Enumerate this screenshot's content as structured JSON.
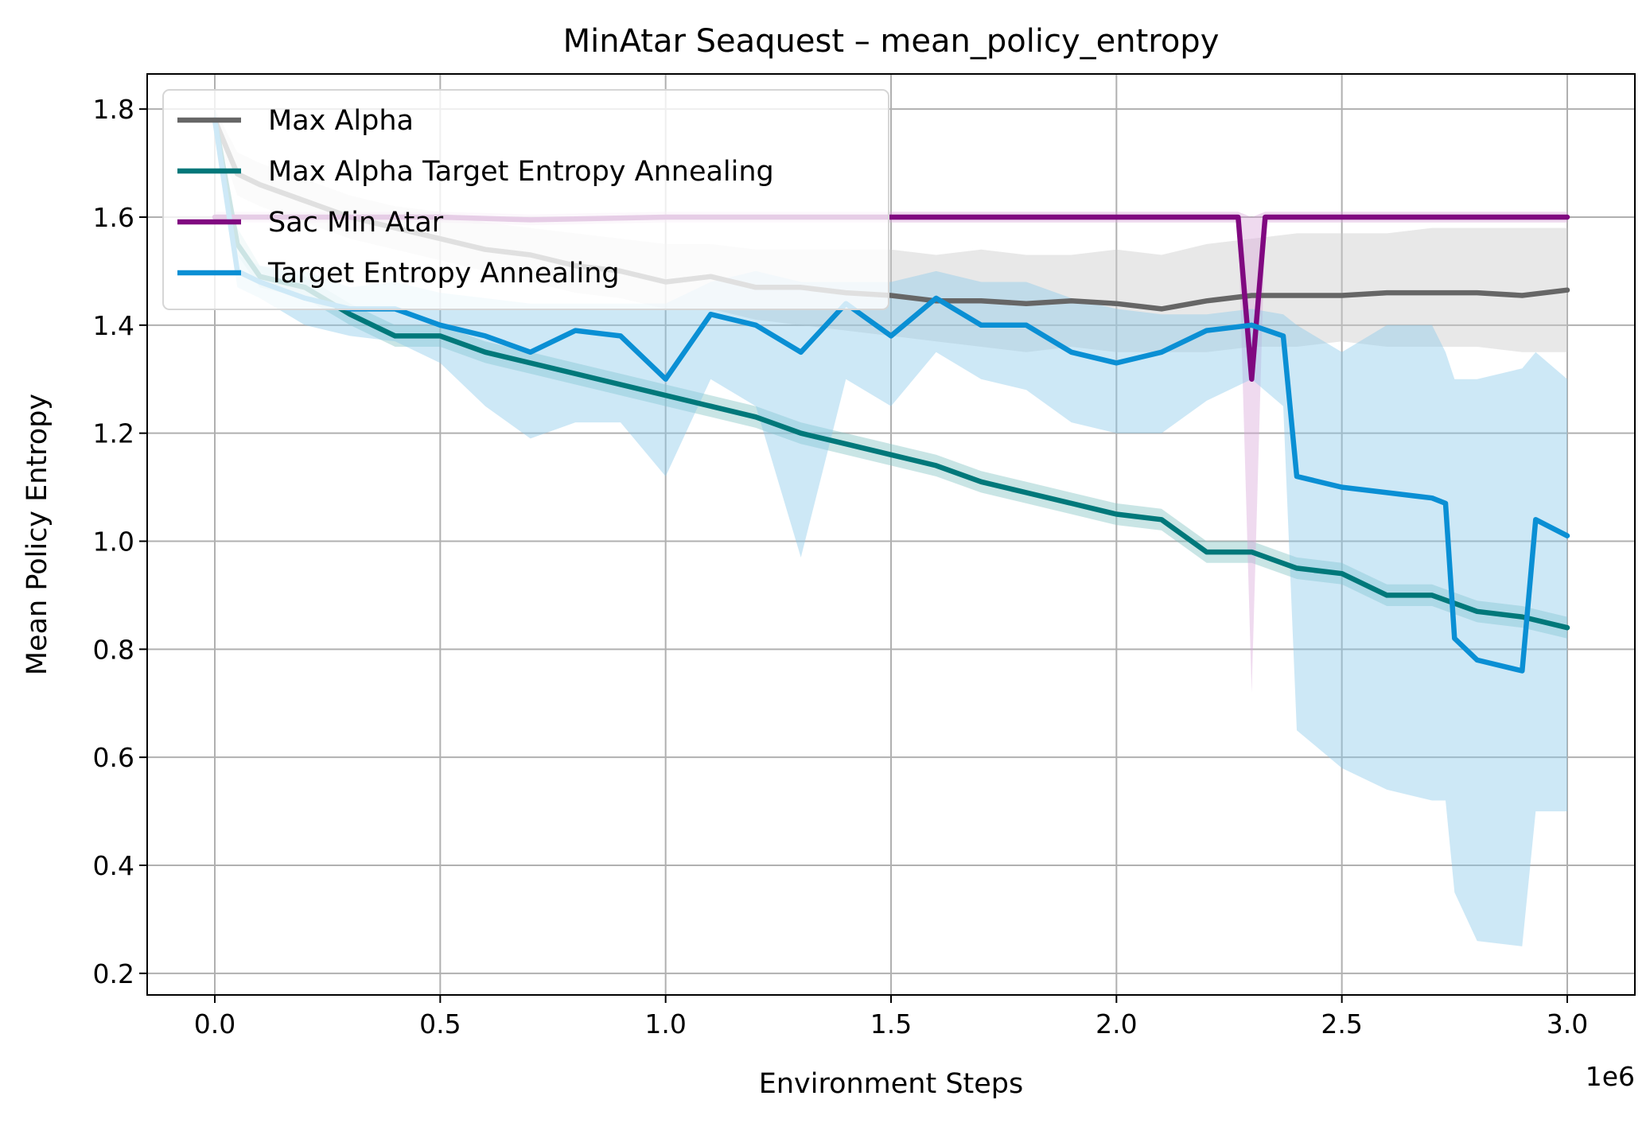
{
  "chart_data": {
    "type": "line",
    "title": "MinAtar Seaquest – mean_policy_entropy",
    "xlabel": "Environment Steps",
    "ylabel": "Mean Policy Entropy",
    "x_multiplier_label": "1e6",
    "xlim": [
      -0.15,
      3.15
    ],
    "ylim": [
      0.16,
      1.865
    ],
    "xticks": [
      {
        "value": 0.0,
        "label": "0.0"
      },
      {
        "value": 0.5,
        "label": "0.5"
      },
      {
        "value": 1.0,
        "label": "1.0"
      },
      {
        "value": 1.5,
        "label": "1.5"
      },
      {
        "value": 2.0,
        "label": "2.0"
      },
      {
        "value": 2.5,
        "label": "2.5"
      },
      {
        "value": 3.0,
        "label": "3.0"
      }
    ],
    "yticks": [
      {
        "value": 0.2,
        "label": "0.2"
      },
      {
        "value": 0.4,
        "label": "0.4"
      },
      {
        "value": 0.6,
        "label": "0.6"
      },
      {
        "value": 0.8,
        "label": "0.8"
      },
      {
        "value": 1.0,
        "label": "1.0"
      },
      {
        "value": 1.2,
        "label": "1.2"
      },
      {
        "value": 1.4,
        "label": "1.4"
      },
      {
        "value": 1.6,
        "label": "1.6"
      },
      {
        "value": 1.8,
        "label": "1.8"
      }
    ],
    "grid": true,
    "legend_position": "upper-left",
    "series": [
      {
        "name": "Max Alpha",
        "color": "#666666",
        "band_color": "#c8c8c8",
        "points": [
          [
            0.0,
            1.78,
            1.76,
            1.8
          ],
          [
            0.05,
            1.68,
            1.64,
            1.72
          ],
          [
            0.1,
            1.66,
            1.62,
            1.7
          ],
          [
            0.2,
            1.63,
            1.59,
            1.67
          ],
          [
            0.3,
            1.6,
            1.56,
            1.64
          ],
          [
            0.4,
            1.58,
            1.54,
            1.62
          ],
          [
            0.5,
            1.56,
            1.52,
            1.61
          ],
          [
            0.6,
            1.54,
            1.5,
            1.59
          ],
          [
            0.7,
            1.53,
            1.48,
            1.58
          ],
          [
            0.8,
            1.51,
            1.46,
            1.57
          ],
          [
            0.9,
            1.5,
            1.45,
            1.56
          ],
          [
            1.0,
            1.48,
            1.43,
            1.55
          ],
          [
            1.1,
            1.49,
            1.43,
            1.55
          ],
          [
            1.2,
            1.47,
            1.41,
            1.54
          ],
          [
            1.3,
            1.47,
            1.4,
            1.54
          ],
          [
            1.4,
            1.46,
            1.39,
            1.54
          ],
          [
            1.5,
            1.455,
            1.38,
            1.54
          ],
          [
            1.6,
            1.445,
            1.37,
            1.53
          ],
          [
            1.7,
            1.445,
            1.36,
            1.54
          ],
          [
            1.8,
            1.44,
            1.35,
            1.53
          ],
          [
            1.9,
            1.445,
            1.36,
            1.53
          ],
          [
            2.0,
            1.44,
            1.35,
            1.54
          ],
          [
            2.1,
            1.43,
            1.35,
            1.53
          ],
          [
            2.2,
            1.445,
            1.35,
            1.55
          ],
          [
            2.3,
            1.455,
            1.36,
            1.56
          ],
          [
            2.4,
            1.455,
            1.36,
            1.57
          ],
          [
            2.5,
            1.455,
            1.37,
            1.57
          ],
          [
            2.6,
            1.46,
            1.36,
            1.57
          ],
          [
            2.7,
            1.46,
            1.36,
            1.58
          ],
          [
            2.8,
            1.46,
            1.36,
            1.58
          ],
          [
            2.9,
            1.455,
            1.35,
            1.58
          ],
          [
            3.0,
            1.465,
            1.35,
            1.58
          ]
        ]
      },
      {
        "name": "Max Alpha Target Entropy Annealing",
        "color": "#00787a",
        "band_color": "#7fc0c1",
        "points": [
          [
            0.0,
            1.78,
            1.76,
            1.8
          ],
          [
            0.05,
            1.55,
            1.53,
            1.58
          ],
          [
            0.1,
            1.49,
            1.47,
            1.51
          ],
          [
            0.2,
            1.47,
            1.45,
            1.49
          ],
          [
            0.3,
            1.42,
            1.4,
            1.44
          ],
          [
            0.4,
            1.38,
            1.36,
            1.4
          ],
          [
            0.5,
            1.38,
            1.36,
            1.4
          ],
          [
            0.6,
            1.35,
            1.33,
            1.37
          ],
          [
            0.7,
            1.33,
            1.31,
            1.35
          ],
          [
            0.8,
            1.31,
            1.29,
            1.33
          ],
          [
            0.9,
            1.29,
            1.27,
            1.31
          ],
          [
            1.0,
            1.27,
            1.25,
            1.29
          ],
          [
            1.1,
            1.25,
            1.23,
            1.27
          ],
          [
            1.2,
            1.23,
            1.21,
            1.25
          ],
          [
            1.3,
            1.2,
            1.18,
            1.22
          ],
          [
            1.4,
            1.18,
            1.16,
            1.2
          ],
          [
            1.5,
            1.16,
            1.14,
            1.18
          ],
          [
            1.6,
            1.14,
            1.12,
            1.16
          ],
          [
            1.7,
            1.11,
            1.09,
            1.13
          ],
          [
            1.8,
            1.09,
            1.07,
            1.11
          ],
          [
            1.9,
            1.07,
            1.05,
            1.09
          ],
          [
            2.0,
            1.05,
            1.03,
            1.07
          ],
          [
            2.1,
            1.04,
            1.02,
            1.06
          ],
          [
            2.2,
            0.98,
            0.96,
            1.0
          ],
          [
            2.3,
            0.98,
            0.96,
            1.0
          ],
          [
            2.4,
            0.95,
            0.93,
            0.97
          ],
          [
            2.5,
            0.94,
            0.92,
            0.96
          ],
          [
            2.6,
            0.9,
            0.88,
            0.92
          ],
          [
            2.7,
            0.9,
            0.88,
            0.92
          ],
          [
            2.8,
            0.87,
            0.85,
            0.89
          ],
          [
            2.9,
            0.86,
            0.84,
            0.88
          ],
          [
            3.0,
            0.84,
            0.82,
            0.86
          ]
        ]
      },
      {
        "name": "Sac Min Atar",
        "color": "#800880",
        "band_color": "#d9a6d9",
        "points": [
          [
            0.0,
            1.6,
            1.59,
            1.61
          ],
          [
            0.1,
            1.6,
            1.59,
            1.61
          ],
          [
            0.3,
            1.6,
            1.59,
            1.61
          ],
          [
            0.5,
            1.6,
            1.59,
            1.61
          ],
          [
            0.7,
            1.595,
            1.585,
            1.605
          ],
          [
            1.0,
            1.6,
            1.59,
            1.61
          ],
          [
            1.3,
            1.6,
            1.59,
            1.61
          ],
          [
            1.5,
            1.6,
            1.59,
            1.61
          ],
          [
            1.8,
            1.6,
            1.59,
            1.61
          ],
          [
            2.0,
            1.6,
            1.59,
            1.61
          ],
          [
            2.2,
            1.6,
            1.59,
            1.61
          ],
          [
            2.27,
            1.6,
            1.59,
            1.61
          ],
          [
            2.3,
            1.3,
            0.72,
            1.6
          ],
          [
            2.33,
            1.6,
            1.59,
            1.61
          ],
          [
            2.5,
            1.6,
            1.59,
            1.61
          ],
          [
            2.8,
            1.6,
            1.59,
            1.61
          ],
          [
            3.0,
            1.6,
            1.59,
            1.61
          ]
        ]
      },
      {
        "name": "Target Entropy Annealing",
        "color": "#0a8fd4",
        "band_color": "#87c8ea",
        "points": [
          [
            0.0,
            1.78,
            1.76,
            1.8
          ],
          [
            0.05,
            1.5,
            1.47,
            1.53
          ],
          [
            0.1,
            1.48,
            1.45,
            1.51
          ],
          [
            0.2,
            1.45,
            1.4,
            1.5
          ],
          [
            0.3,
            1.43,
            1.38,
            1.47
          ],
          [
            0.4,
            1.43,
            1.37,
            1.48
          ],
          [
            0.5,
            1.4,
            1.33,
            1.46
          ],
          [
            0.6,
            1.38,
            1.25,
            1.45
          ],
          [
            0.7,
            1.35,
            1.19,
            1.44
          ],
          [
            0.8,
            1.39,
            1.22,
            1.44
          ],
          [
            0.9,
            1.38,
            1.22,
            1.44
          ],
          [
            1.0,
            1.3,
            1.12,
            1.44
          ],
          [
            1.1,
            1.42,
            1.3,
            1.48
          ],
          [
            1.2,
            1.4,
            1.25,
            1.5
          ],
          [
            1.3,
            1.35,
            0.97,
            1.48
          ],
          [
            1.4,
            1.44,
            1.3,
            1.48
          ],
          [
            1.5,
            1.38,
            1.25,
            1.48
          ],
          [
            1.6,
            1.45,
            1.35,
            1.5
          ],
          [
            1.7,
            1.4,
            1.3,
            1.48
          ],
          [
            1.8,
            1.4,
            1.28,
            1.48
          ],
          [
            1.9,
            1.35,
            1.22,
            1.45
          ],
          [
            2.0,
            1.33,
            1.2,
            1.43
          ],
          [
            2.1,
            1.35,
            1.2,
            1.42
          ],
          [
            2.2,
            1.39,
            1.26,
            1.42
          ],
          [
            2.3,
            1.4,
            1.3,
            1.43
          ],
          [
            2.37,
            1.38,
            1.25,
            1.42
          ],
          [
            2.4,
            1.12,
            0.65,
            1.4
          ],
          [
            2.5,
            1.1,
            0.58,
            1.35
          ],
          [
            2.6,
            1.09,
            0.54,
            1.4
          ],
          [
            2.7,
            1.08,
            0.52,
            1.4
          ],
          [
            2.73,
            1.07,
            0.52,
            1.35
          ],
          [
            2.75,
            0.82,
            0.35,
            1.3
          ],
          [
            2.8,
            0.78,
            0.26,
            1.3
          ],
          [
            2.9,
            0.76,
            0.25,
            1.32
          ],
          [
            2.93,
            1.04,
            0.5,
            1.35
          ],
          [
            3.0,
            1.01,
            0.5,
            1.3
          ]
        ]
      }
    ]
  }
}
